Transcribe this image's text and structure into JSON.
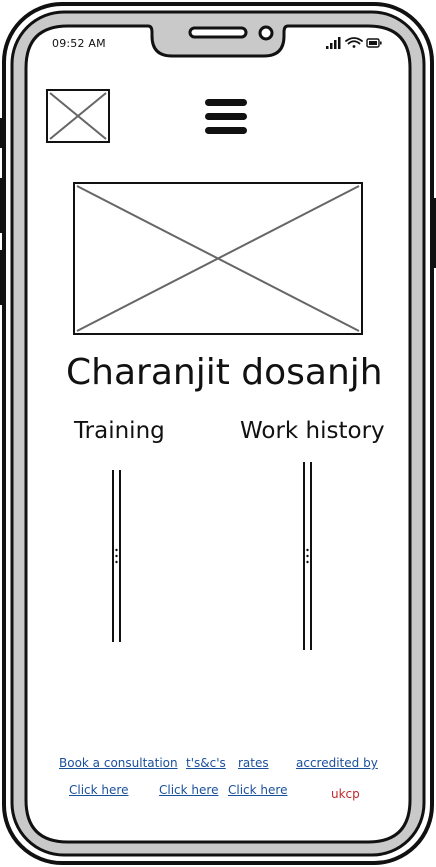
{
  "status_bar": {
    "time": "09:52 AM"
  },
  "header": {
    "logo_icon": "image-placeholder-icon",
    "menu_icon": "hamburger-menu-icon"
  },
  "hero": {
    "icon": "image-placeholder-icon"
  },
  "profile": {
    "name": "Charanjit dosanjh"
  },
  "sections": {
    "training": {
      "title": "Training"
    },
    "work_history": {
      "title": "Work history"
    }
  },
  "footer": {
    "book_label": "Book a consultation",
    "tc_label": "t's&c's",
    "rates_label": "rates",
    "accredited_label": "accredited by",
    "book_link": "Click here",
    "tc_link": "Click here",
    "rates_link": "Click here",
    "accreditor": "ukcp"
  },
  "colors": {
    "link": "#1a4f9c",
    "accreditor": "#c0282d",
    "frame": "#111111"
  }
}
